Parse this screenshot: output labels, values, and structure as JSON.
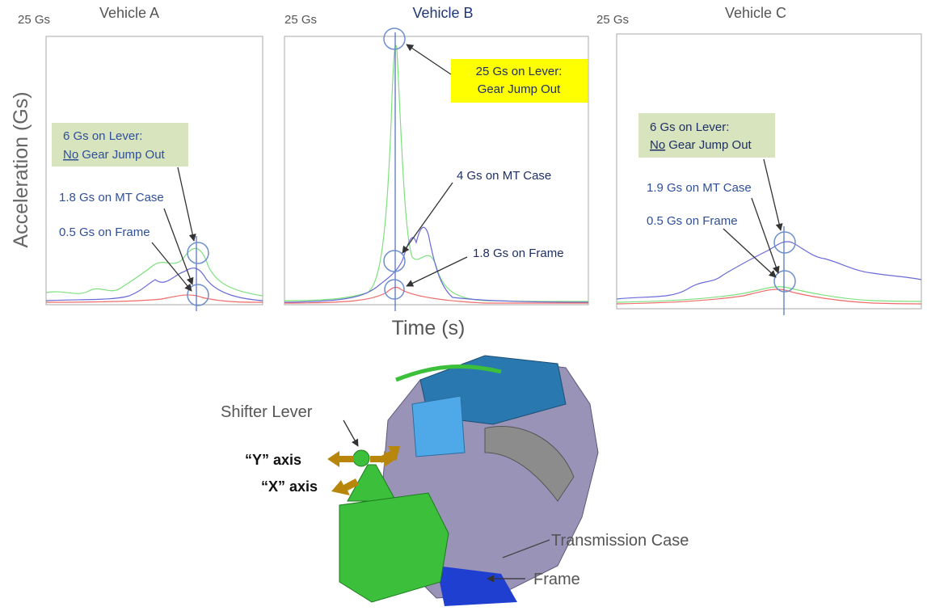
{
  "axis_labels": {
    "y": "Acceleration (Gs)",
    "x": "Time (s)"
  },
  "panels": [
    {
      "scale_label": "25 Gs",
      "title": "Vehicle A",
      "lever_note": {
        "line1": "6 Gs on Lever:",
        "emphasis": "No",
        "rest": "Gear Jump Out"
      },
      "case_note": "1.8 Gs on MT Case",
      "frame_note": "0.5 Gs on Frame"
    },
    {
      "scale_label": "25 Gs",
      "title": "Vehicle B",
      "lever_note": {
        "line1": "25 Gs on Lever:",
        "line2": "Gear Jump Out"
      },
      "case_note": "4 Gs on MT Case",
      "frame_note": "1.8 Gs on Frame"
    },
    {
      "scale_label": "25 Gs",
      "title": "Vehicle C",
      "lever_note": {
        "line1": "6 Gs on Lever:",
        "emphasis": "No",
        "rest": "Gear Jump Out"
      },
      "case_note": "1.9 Gs on MT Case",
      "frame_note": "0.5 Gs on Frame"
    }
  ],
  "diagram": {
    "shifter": "Shifter Lever",
    "y_axis": "“Y” axis",
    "x_axis": "“X” axis",
    "case": "Transmission Case",
    "frame": "Frame"
  }
}
